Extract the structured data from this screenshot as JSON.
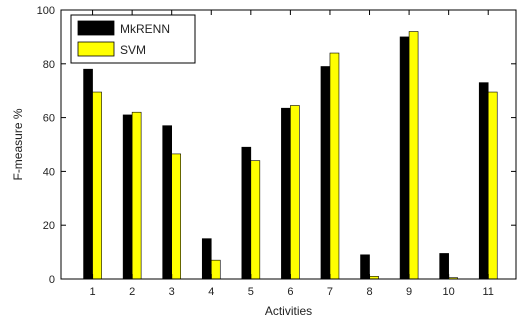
{
  "chart_data": {
    "type": "bar",
    "title": "",
    "xlabel": "Activities",
    "ylabel": "F-measure %",
    "ylim": [
      0,
      100
    ],
    "yticks": [
      0,
      20,
      40,
      60,
      80,
      100
    ],
    "categories": [
      "1",
      "2",
      "3",
      "4",
      "5",
      "6",
      "7",
      "8",
      "9",
      "10",
      "11"
    ],
    "series": [
      {
        "name": "MkRENN",
        "color": "#000000",
        "values": [
          78,
          61,
          57,
          15,
          49,
          63.5,
          79,
          9,
          90,
          9.5,
          73
        ]
      },
      {
        "name": "SVM",
        "color": "#ffff00",
        "values": [
          69.5,
          62,
          46.5,
          7,
          44,
          64.5,
          84,
          1,
          92,
          0.5,
          69.5
        ]
      }
    ],
    "grid": false,
    "legend": {
      "position": "top-left"
    }
  }
}
